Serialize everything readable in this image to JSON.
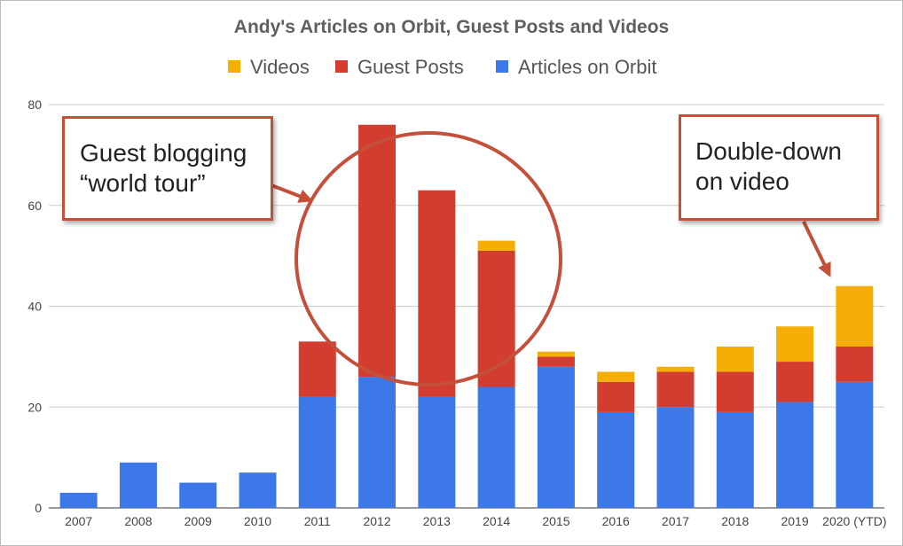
{
  "chart_data": {
    "type": "bar",
    "stacked": true,
    "title": "Andy's Articles on Orbit, Guest Posts and Videos",
    "xlabel": "",
    "ylabel": "",
    "ylim": [
      0,
      80
    ],
    "yticks": [
      0,
      20,
      40,
      60,
      80
    ],
    "grid": true,
    "legend_position": "top",
    "categories": [
      "2007",
      "2008",
      "2009",
      "2010",
      "2011",
      "2012",
      "2013",
      "2014",
      "2015",
      "2016",
      "2017",
      "2018",
      "2019",
      "2020 (YTD)"
    ],
    "series": [
      {
        "name": "Articles on Orbit",
        "color": "#3c78e8",
        "values": [
          3,
          9,
          5,
          7,
          22,
          26,
          22,
          24,
          28,
          19,
          20,
          19,
          21,
          25
        ]
      },
      {
        "name": "Guest Posts",
        "color": "#d33d2f",
        "values": [
          0,
          0,
          0,
          0,
          11,
          50,
          41,
          27,
          2,
          6,
          7,
          8,
          8,
          7
        ]
      },
      {
        "name": "Videos",
        "color": "#f4ae05",
        "values": [
          0,
          0,
          0,
          0,
          0,
          0,
          0,
          2,
          1,
          2,
          1,
          5,
          7,
          12
        ]
      }
    ],
    "legend_order": [
      "Videos",
      "Guest Posts",
      "Articles on Orbit"
    ],
    "annotations": [
      {
        "id": "guest",
        "lines": [
          "Guest blogging",
          "“world tour”"
        ]
      },
      {
        "id": "video",
        "lines": [
          "Double-down",
          "on video"
        ]
      }
    ],
    "annotation_color": "#c4503a"
  }
}
